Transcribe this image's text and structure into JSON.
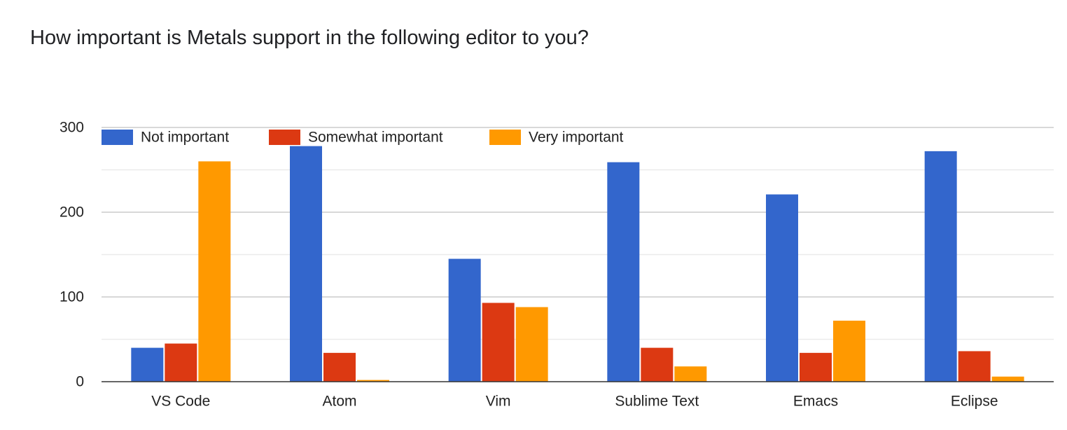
{
  "chart_data": {
    "type": "bar",
    "title": "How important is Metals support in the following editor to you?",
    "xlabel": "",
    "ylabel": "",
    "categories": [
      "VS Code",
      "Atom",
      "Vim",
      "Sublime Text",
      "Emacs",
      "Eclipse"
    ],
    "series": [
      {
        "name": "Not important",
        "color": "#3366cc",
        "values": [
          40,
          278,
          145,
          259,
          221,
          272
        ]
      },
      {
        "name": "Somewhat important",
        "color": "#dc3912",
        "values": [
          45,
          34,
          93,
          40,
          34,
          36
        ]
      },
      {
        "name": "Very important",
        "color": "#ff9900",
        "values": [
          260,
          2,
          88,
          18,
          72,
          6
        ]
      }
    ],
    "ylim": [
      0,
      300
    ],
    "yticks": [
      0,
      100,
      200,
      300
    ],
    "grid": true,
    "legend_position": "top-left"
  }
}
